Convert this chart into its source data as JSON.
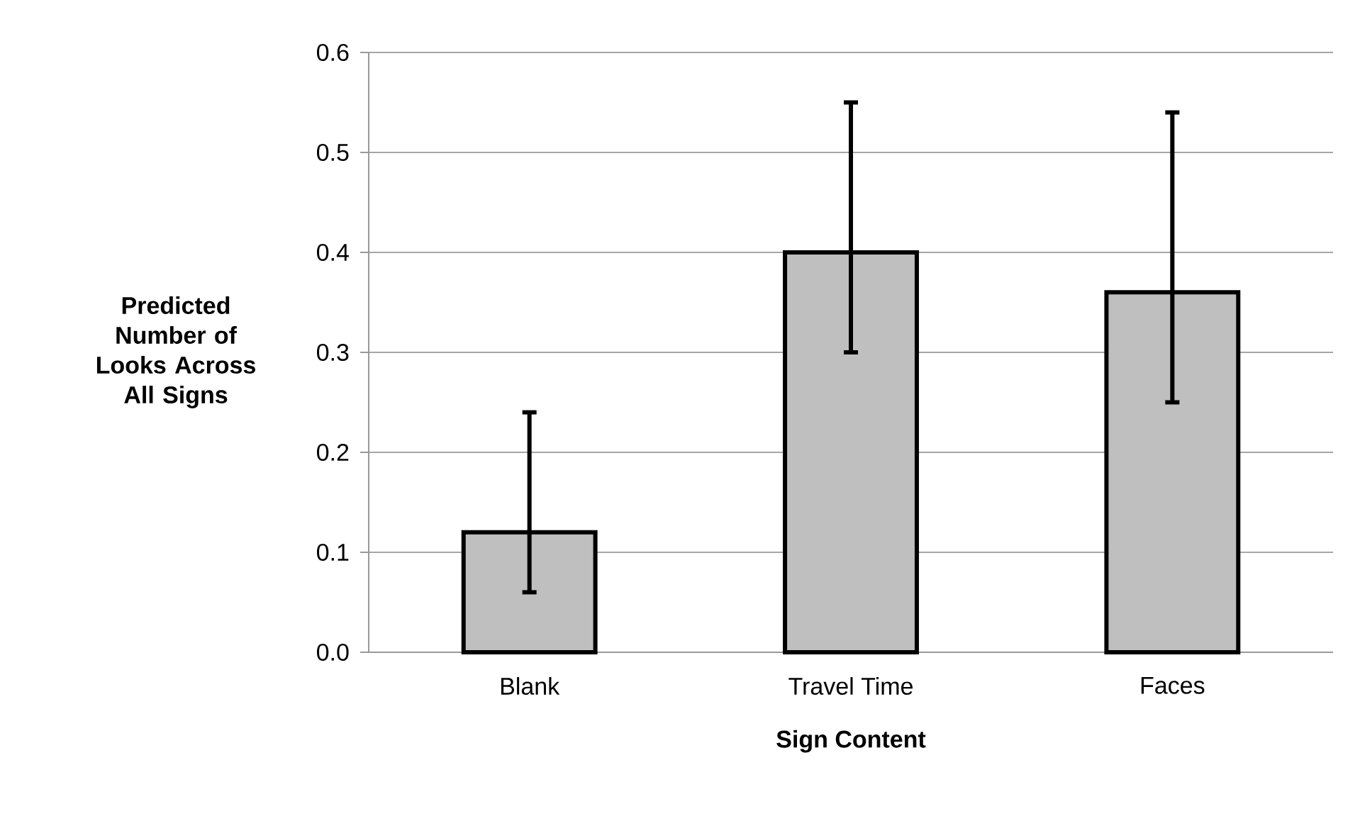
{
  "chart_data": {
    "type": "bar",
    "xlabel": "Sign Content",
    "ylabel": "Predicted Number of Looks Across All Signs",
    "categories": [
      "Blank",
      "Travel Time",
      "Faces"
    ],
    "values": [
      0.12,
      0.4,
      0.36
    ],
    "errors": [
      [
        0.06,
        0.24
      ],
      [
        0.3,
        0.55
      ],
      [
        0.25,
        0.54
      ]
    ],
    "color": "#bfbfbf",
    "ylim": [
      0,
      0.6
    ],
    "yticks": [
      {
        "value": 0,
        "label": "0.0"
      },
      0.1,
      0.2,
      0.3,
      0.4,
      0.5,
      0.6
    ],
    "grid": "y"
  }
}
